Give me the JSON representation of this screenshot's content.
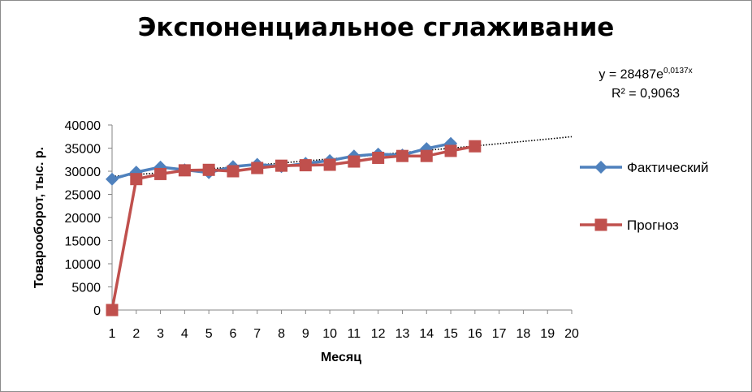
{
  "chart_data": {
    "type": "line",
    "title": "Экспоненциальное сглаживание",
    "xlabel": "Месяц",
    "ylabel": "Товарооборот,  тыс. р.",
    "x_ticks": [
      1,
      2,
      3,
      4,
      5,
      6,
      7,
      8,
      9,
      10,
      11,
      12,
      13,
      14,
      15,
      16,
      17,
      18,
      19,
      20
    ],
    "y_ticks": [
      0,
      5000,
      10000,
      15000,
      20000,
      25000,
      30000,
      35000,
      40000
    ],
    "y_tick_labels": [
      "0",
      "5000",
      "10000",
      "15000",
      "20000",
      "25000",
      "30000",
      "35000",
      "40000"
    ],
    "xlim": [
      1,
      20
    ],
    "ylim": [
      0,
      40000
    ],
    "grid": false,
    "legend_position": "right",
    "series": [
      {
        "name": "Фактический",
        "color": "#4f81bd",
        "marker": "diamond",
        "x": [
          1,
          2,
          3,
          4,
          5,
          6,
          7,
          8,
          9,
          10,
          11,
          12,
          13,
          14,
          15
        ],
        "values": [
          28300,
          29800,
          30900,
          30300,
          29700,
          31000,
          31500,
          31000,
          31700,
          32300,
          33300,
          33700,
          33500,
          34900,
          36000
        ]
      },
      {
        "name": "Прогноз",
        "color": "#c0504d",
        "marker": "square",
        "x": [
          1,
          2,
          3,
          4,
          5,
          6,
          7,
          8,
          9,
          10,
          11,
          12,
          13,
          14,
          15,
          16
        ],
        "values": [
          0,
          28300,
          29400,
          30200,
          30300,
          30000,
          30700,
          31200,
          31300,
          31400,
          32100,
          32900,
          33300,
          33300,
          34400,
          35400
        ]
      }
    ],
    "trendline": {
      "type": "exponential",
      "style": "dotted",
      "color": "#000000",
      "coef_a": 28487,
      "coef_b": 0.0137,
      "x_range": [
        1,
        20
      ],
      "equation_prefix": "y = 28487e",
      "equation_exponent": "0,0137x",
      "r2_label": "R² = 0,9063"
    }
  }
}
